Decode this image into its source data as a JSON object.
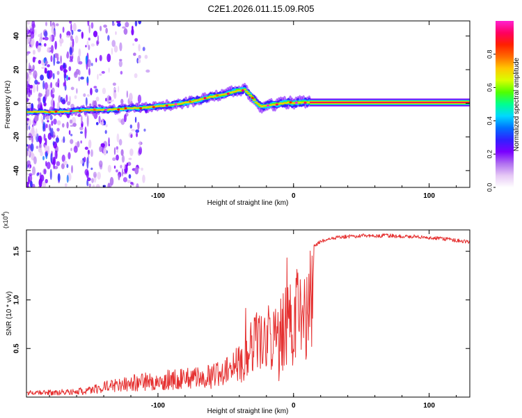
{
  "title": "C2E1.2026.011.15.09.R05",
  "colors": {
    "frame": "#000000",
    "snr_line": "#e53030",
    "colormap": [
      "#ffffff",
      "#e6c8f5",
      "#b070f0",
      "#7a00ff",
      "#3020ff",
      "#0070ff",
      "#00d8ff",
      "#00ff90",
      "#50ff00",
      "#d8ff00",
      "#ffc800",
      "#ff6a00",
      "#ff2000",
      "#ff0060",
      "#ff20d0"
    ]
  },
  "chart_data": [
    {
      "type": "heatmap",
      "title": "C2E1.2026.011.15.09.R05",
      "xlabel": "Height of straight line (km)",
      "ylabel": "Frequency (Hz)",
      "xlim": [
        -197,
        130
      ],
      "ylim": [
        -50,
        49
      ],
      "xticks": [
        -100,
        0,
        100
      ],
      "yticks": [
        -40,
        -20,
        0,
        20,
        40
      ],
      "xtick_labels": [
        "-100",
        "0",
        "100"
      ],
      "ytick_labels": [
        "-40",
        "-20",
        "0",
        "20",
        "40"
      ],
      "colorbar": {
        "label": "Normalized spectral amplitude",
        "range": [
          0,
          1
        ],
        "ticks": [
          0.0,
          0.2,
          0.4,
          0.6,
          0.8
        ],
        "tick_labels": [
          "0.0",
          "0.2",
          "0.4",
          "0.6",
          "0.8"
        ]
      },
      "ridge": [
        [
          -197,
          -5
        ],
        [
          -170,
          -5
        ],
        [
          -150,
          -4
        ],
        [
          -130,
          -3.5
        ],
        [
          -110,
          -2.5
        ],
        [
          -90,
          -1
        ],
        [
          -75,
          1
        ],
        [
          -60,
          4
        ],
        [
          -50,
          5.5
        ],
        [
          -42,
          7.5
        ],
        [
          -36,
          8
        ],
        [
          -32,
          5
        ],
        [
          -28,
          1
        ],
        [
          -24,
          -2
        ],
        [
          -20,
          -1.5
        ],
        [
          -16,
          -1
        ],
        [
          -12,
          -0.5
        ],
        [
          -8,
          0
        ],
        [
          -4,
          0.5
        ],
        [
          0,
          0
        ],
        [
          5,
          0.5
        ],
        [
          12,
          0.5
        ],
        [
          130,
          0.5
        ]
      ]
    },
    {
      "type": "line",
      "xlabel": "Height of straight line (km)",
      "ylabel": "SNR (10 * v/v)",
      "y_multiplier": "(x10^4)",
      "y_multiplier_base": "(x10",
      "y_multiplier_exp": "4",
      "y_multiplier_close": ")",
      "xlim": [
        -197,
        130
      ],
      "ylim": [
        0,
        1.72
      ],
      "xticks": [
        -100,
        0,
        100
      ],
      "yticks": [
        0.5,
        1.0,
        1.5
      ],
      "xtick_labels": [
        "-100",
        "0",
        "100"
      ],
      "ytick_labels": [
        "0.5",
        "1.0",
        "1.5"
      ],
      "series": [
        {
          "name": "SNR",
          "envelope": [
            [
              -197,
              0.05
            ],
            [
              -170,
              0.06
            ],
            [
              -150,
              0.08
            ],
            [
              -140,
              0.12
            ],
            [
              -120,
              0.17
            ],
            [
              -100,
              0.2
            ],
            [
              -80,
              0.22
            ],
            [
              -60,
              0.25
            ],
            [
              -50,
              0.3
            ],
            [
              -40,
              0.45
            ],
            [
              -35,
              0.7
            ],
            [
              -30,
              0.85
            ],
            [
              -25,
              0.9
            ],
            [
              -20,
              0.95
            ],
            [
              -15,
              1.0
            ],
            [
              -10,
              1.05
            ],
            [
              -5,
              1.15
            ],
            [
              0,
              1.25
            ],
            [
              5,
              1.4
            ],
            [
              10,
              1.5
            ],
            [
              15,
              1.56
            ],
            [
              20,
              1.6
            ],
            [
              30,
              1.64
            ],
            [
              50,
              1.66
            ],
            [
              70,
              1.66
            ],
            [
              90,
              1.65
            ],
            [
              100,
              1.64
            ],
            [
              110,
              1.63
            ],
            [
              120,
              1.61
            ],
            [
              130,
              1.6
            ]
          ]
        }
      ]
    }
  ]
}
